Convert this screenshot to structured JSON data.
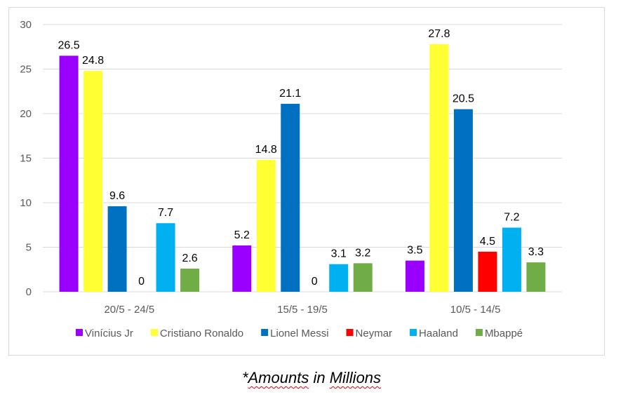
{
  "chart_data": {
    "type": "bar",
    "title": "",
    "xlabel": "",
    "ylabel": "",
    "ylim": [
      0,
      30
    ],
    "yticks": [
      0,
      5,
      10,
      15,
      20,
      25,
      30
    ],
    "grid": true,
    "legend_position": "bottom",
    "categories": [
      "20/5 - 24/5",
      "15/5 - 19/5",
      "10/5 - 14/5"
    ],
    "series": [
      {
        "name": "Vinícius Jr",
        "color": "#9900ff",
        "values": [
          26.5,
          5.2,
          3.5
        ]
      },
      {
        "name": "Cristiano Ronaldo",
        "color": "#ffff33",
        "values": [
          24.8,
          14.8,
          27.8
        ]
      },
      {
        "name": "Lionel Messi",
        "color": "#0070c0",
        "values": [
          9.6,
          21.1,
          20.5
        ]
      },
      {
        "name": "Neymar",
        "color": "#ff0000",
        "values": [
          0,
          0,
          4.5
        ]
      },
      {
        "name": "Haaland",
        "color": "#00b0f0",
        "values": [
          7.7,
          3.1,
          7.2
        ]
      },
      {
        "name": "Mbappé",
        "color": "#70ad47",
        "values": [
          2.6,
          3.2,
          3.3
        ]
      }
    ]
  },
  "caption": {
    "prefix": "*",
    "word1": "Amounts",
    "middle": " in ",
    "word2": "Millions"
  }
}
